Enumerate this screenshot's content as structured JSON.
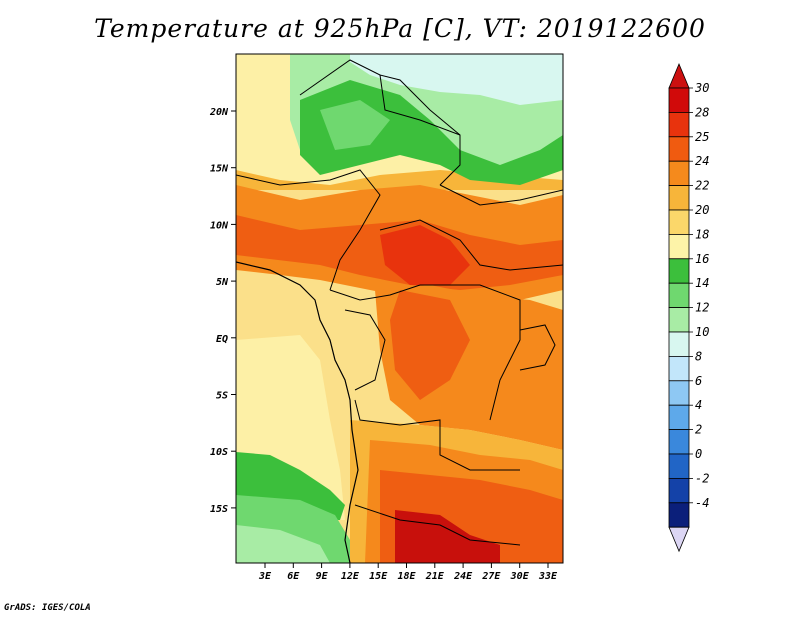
{
  "header": {
    "title": "Temperature at 925hPa [C], VT: 2019122600"
  },
  "footer": {
    "credit": "GrADS: IGES/COLA"
  },
  "map": {
    "x_tick_labels": [
      "3E",
      "6E",
      "9E",
      "12E",
      "15E",
      "18E",
      "21E",
      "24E",
      "27E",
      "30E",
      "33E"
    ],
    "y_tick_labels": [
      "20N",
      "15N",
      "10N",
      "5N",
      "EQ",
      "5S",
      "10S",
      "15S"
    ]
  },
  "colorbar": {
    "labels": [
      "30",
      "28",
      "25",
      "24",
      "22",
      "20",
      "18",
      "16",
      "14",
      "12",
      "10",
      "8",
      "6",
      "4",
      "2",
      "0",
      "-2",
      "-4"
    ],
    "colors": [
      "#d10a0a",
      "#e8330d",
      "#f05b10",
      "#f58a1c",
      "#f7b53a",
      "#fbd76a",
      "#fdf3a8",
      "#3cbf3c",
      "#6fd86f",
      "#a8eca5",
      "#d8f7f0",
      "#c2e6fa",
      "#8ec8f3",
      "#5ea9ea",
      "#3a88dc",
      "#2165c6",
      "#1442a8",
      "#0b1f7a"
    ],
    "top_arrow_color": "#cc1010",
    "bottom_arrow_color": "#dcd6f4"
  },
  "field_colors": {
    "ocean_yellow": "#fbe08a",
    "pale_yellow": "#fdf0a6",
    "light_orange": "#f7b53a",
    "orange": "#f5891c",
    "dark_orange": "#ef5e12",
    "red_orange": "#e8330d",
    "red": "#c8100c",
    "green": "#3cbf3c",
    "light_green": "#6fd86f",
    "pale_green": "#a8eca5",
    "pale_blue": "#d8f7f0"
  }
}
